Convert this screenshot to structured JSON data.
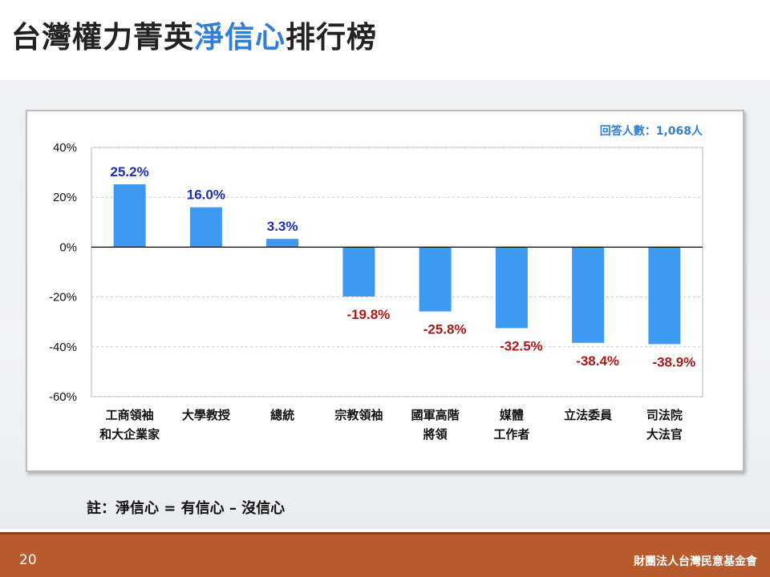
{
  "slide": {
    "title_before": "台灣權力菁英",
    "title_highlight": "淨信心",
    "title_after": "排行榜",
    "note": "註：淨信心 = 有信心 – 沒信心",
    "page_number": "20",
    "organization": "財團法人台灣民意基金會",
    "highlight_color": "#2f7fd8",
    "footer_color": "#b85a2b"
  },
  "chart_data": {
    "type": "bar",
    "annotation": "回答人數：1,068人",
    "categories": [
      [
        "工商領袖",
        "和大企業家"
      ],
      [
        "大學教授"
      ],
      [
        "總統"
      ],
      [
        "宗教領袖"
      ],
      [
        "國軍高階",
        "將領"
      ],
      [
        "媒體",
        "工作者"
      ],
      [
        "立法委員"
      ],
      [
        "司法院",
        "大法官"
      ]
    ],
    "values": [
      25.2,
      16.0,
      3.3,
      -19.8,
      -25.8,
      -32.5,
      -38.4,
      -38.9
    ],
    "data_labels": [
      "25.2%",
      "16.0%",
      "3.3%",
      "-19.8%",
      "-25.8%",
      "-32.5%",
      "-38.4%",
      "-38.9%"
    ],
    "ylim": [
      -60,
      40
    ],
    "yticks": [
      40,
      20,
      0,
      -20,
      -40,
      -60
    ],
    "ytick_labels": [
      "40%",
      "20%",
      "0%",
      "-20%",
      "-40%",
      "-60%"
    ],
    "grid": true,
    "bar_color": "#3d9af0",
    "positive_label_color": "#1a2fb8",
    "negative_label_color": "#b01818"
  }
}
